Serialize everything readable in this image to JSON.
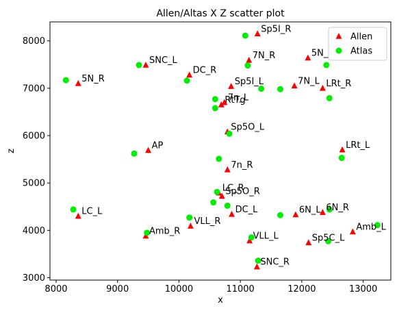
{
  "chart_data": {
    "type": "scatter",
    "title": "Allen/Altas X Z scatter plot",
    "xlabel": "x",
    "ylabel": "z",
    "xlim": [
      7900,
      13450
    ],
    "ylim": [
      2950,
      8400
    ],
    "xticks": [
      8000,
      9000,
      10000,
      11000,
      12000,
      13000
    ],
    "yticks": [
      3000,
      4000,
      5000,
      6000,
      7000,
      8000
    ],
    "grid": false,
    "legend_position": "top-right",
    "series": [
      {
        "name": "Allen",
        "marker": "triangle",
        "color": "#ff0000",
        "points": [
          {
            "x": 11280,
            "y": 8150,
            "label": "Sp5I_R"
          },
          {
            "x": 11140,
            "y": 7590,
            "label": "7N_R"
          },
          {
            "x": 12100,
            "y": 7640,
            "label": "5N_L"
          },
          {
            "x": 9460,
            "y": 7490,
            "label": "SNC_L"
          },
          {
            "x": 10170,
            "y": 7280,
            "label": "DC_R"
          },
          {
            "x": 8360,
            "y": 7100,
            "label": "5N_R"
          },
          {
            "x": 10850,
            "y": 7040,
            "label": "Sp5I_L"
          },
          {
            "x": 11880,
            "y": 7050,
            "label": "7N_L"
          },
          {
            "x": 12340,
            "y": 7000,
            "label": "LRt_R"
          },
          {
            "x": 10740,
            "y": 6700,
            "label": "7n_L"
          },
          {
            "x": 10690,
            "y": 6650,
            "label": "RtTg"
          },
          {
            "x": 10790,
            "y": 6080,
            "label": "Sp5O_L"
          },
          {
            "x": 9500,
            "y": 5690,
            "label": "AP"
          },
          {
            "x": 12660,
            "y": 5700,
            "label": "LRt_L"
          },
          {
            "x": 10790,
            "y": 5280,
            "label": "7n_R"
          },
          {
            "x": 10650,
            "y": 4790,
            "label": "LC_R"
          },
          {
            "x": 10700,
            "y": 4720,
            "label": "Sp5O_R"
          },
          {
            "x": 8360,
            "y": 4300,
            "label": "LC_L"
          },
          {
            "x": 10860,
            "y": 4340,
            "label": "DC_L"
          },
          {
            "x": 11900,
            "y": 4330,
            "label": "6N_L"
          },
          {
            "x": 12340,
            "y": 4380,
            "label": "6N_R"
          },
          {
            "x": 10190,
            "y": 4090,
            "label": "VLL_R"
          },
          {
            "x": 12830,
            "y": 3970,
            "label": "Amb_L"
          },
          {
            "x": 9460,
            "y": 3880,
            "label": "Amb_R"
          },
          {
            "x": 11150,
            "y": 3780,
            "label": "VLL_L"
          },
          {
            "x": 12110,
            "y": 3740,
            "label": "Sp5C_L"
          },
          {
            "x": 11270,
            "y": 3230,
            "label": "SNC_R"
          }
        ]
      },
      {
        "name": "Atlas",
        "marker": "circle",
        "color": "#00ee00",
        "points": [
          {
            "x": 11080,
            "y": 8110
          },
          {
            "x": 9350,
            "y": 7490
          },
          {
            "x": 11120,
            "y": 7480
          },
          {
            "x": 12400,
            "y": 7490
          },
          {
            "x": 8160,
            "y": 7170
          },
          {
            "x": 10130,
            "y": 7160
          },
          {
            "x": 11340,
            "y": 6990
          },
          {
            "x": 11650,
            "y": 6980
          },
          {
            "x": 10590,
            "y": 6770
          },
          {
            "x": 12450,
            "y": 6790
          },
          {
            "x": 10590,
            "y": 6580
          },
          {
            "x": 10820,
            "y": 6040
          },
          {
            "x": 9270,
            "y": 5620
          },
          {
            "x": 12650,
            "y": 5530
          },
          {
            "x": 10650,
            "y": 5510
          },
          {
            "x": 10620,
            "y": 4810
          },
          {
            "x": 10560,
            "y": 4590
          },
          {
            "x": 10790,
            "y": 4520
          },
          {
            "x": 8280,
            "y": 4440
          },
          {
            "x": 12450,
            "y": 4440
          },
          {
            "x": 11650,
            "y": 4320
          },
          {
            "x": 10170,
            "y": 4270
          },
          {
            "x": 13230,
            "y": 4110
          },
          {
            "x": 9480,
            "y": 3950
          },
          {
            "x": 11180,
            "y": 3850
          },
          {
            "x": 12430,
            "y": 3770
          },
          {
            "x": 11290,
            "y": 3360
          }
        ]
      }
    ]
  }
}
